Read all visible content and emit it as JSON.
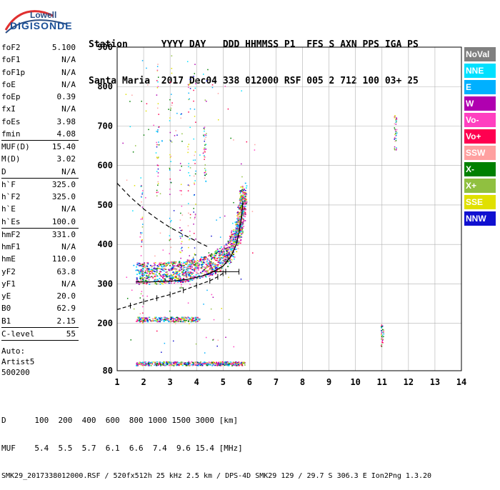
{
  "logo": {
    "brand": "Lowell",
    "product": "DIGISONDE"
  },
  "header": {
    "line1": "Station      YYYY DAY   DDD HHMMSS P1  FFS S AXN PPS IGA PS",
    "line2": "Santa Maria  2017 Dec04 338 012000 RSF 005 2 712 100 03+ 25"
  },
  "params": [
    {
      "label": "foF2",
      "value": "5.100"
    },
    {
      "label": "foF1",
      "value": "N/A"
    },
    {
      "label": "foF1p",
      "value": "N/A"
    },
    {
      "label": "foE",
      "value": "N/A"
    },
    {
      "label": "foEp",
      "value": "0.39"
    },
    {
      "label": "fxI",
      "value": "N/A"
    },
    {
      "label": "foEs",
      "value": "3.98"
    },
    {
      "label": "fmin",
      "value": "4.08"
    },
    {
      "label": "MUF(D)",
      "value": "15.40"
    },
    {
      "label": "M(D)",
      "value": "3.02"
    },
    {
      "label": "D",
      "value": "N/A"
    },
    {
      "label": "h`F",
      "value": "325.0"
    },
    {
      "label": "h`F2",
      "value": "325.0"
    },
    {
      "label": "h`E",
      "value": "N/A"
    },
    {
      "label": "h`Es",
      "value": "100.0"
    },
    {
      "label": "hmF2",
      "value": "331.0"
    },
    {
      "label": "hmF1",
      "value": "N/A"
    },
    {
      "label": "hmE",
      "value": "110.0"
    },
    {
      "label": "yF2",
      "value": "63.8"
    },
    {
      "label": "yF1",
      "value": "N/A"
    },
    {
      "label": "yE",
      "value": "20.0"
    },
    {
      "label": "B0",
      "value": "62.9"
    },
    {
      "label": "B1",
      "value": "2.15"
    },
    {
      "label": "C-level",
      "value": "55"
    }
  ],
  "auto": {
    "line1": "Auto:",
    "line2": "Artist5",
    "line3": "500200"
  },
  "legend": [
    {
      "label": "NoVal",
      "color": "#808080"
    },
    {
      "label": "NNE",
      "color": "#00e0ff"
    },
    {
      "label": "E",
      "color": "#00b0ff"
    },
    {
      "label": "W",
      "color": "#b000b0"
    },
    {
      "label": "Vo-",
      "color": "#ff40c0"
    },
    {
      "label": "Vo+",
      "color": "#ff0050"
    },
    {
      "label": "SSW",
      "color": "#ffa0a0"
    },
    {
      "label": "X-",
      "color": "#008000"
    },
    {
      "label": "X+",
      "color": "#90c040"
    },
    {
      "label": "SSE",
      "color": "#e0e000"
    },
    {
      "label": "NNW",
      "color": "#1010d0"
    }
  ],
  "chart_data": {
    "type": "scatter",
    "xlim": [
      1,
      14
    ],
    "ylim": [
      80,
      900
    ],
    "x_ticks": [
      1,
      2,
      3,
      4,
      5,
      6,
      7,
      8,
      9,
      10,
      11,
      12,
      13,
      14
    ],
    "y_ticks": [
      80,
      200,
      300,
      400,
      500,
      600,
      700,
      800,
      900
    ],
    "grid": true,
    "series": [
      {
        "name": "F2 trace",
        "points": [
          [
            1.7,
            305
          ],
          [
            2.2,
            305
          ],
          [
            2.7,
            306
          ],
          [
            3.2,
            308
          ],
          [
            3.7,
            312
          ],
          [
            4.2,
            320
          ],
          [
            4.6,
            330
          ],
          [
            5.0,
            345
          ],
          [
            5.3,
            370
          ],
          [
            5.5,
            400
          ],
          [
            5.6,
            430
          ],
          [
            5.7,
            470
          ],
          [
            5.75,
            510
          ]
        ]
      },
      {
        "name": "Es trace",
        "points": [
          [
            1.7,
            212
          ],
          [
            2.2,
            212
          ],
          [
            2.7,
            212
          ],
          [
            3.2,
            212
          ],
          [
            3.7,
            212
          ],
          [
            4.0,
            212
          ]
        ]
      },
      {
        "name": "E layer",
        "points": [
          [
            1.7,
            99
          ],
          [
            2.3,
            99
          ],
          [
            3.0,
            99
          ],
          [
            3.7,
            99
          ],
          [
            4.3,
            101
          ],
          [
            4.8,
            101
          ],
          [
            5.8,
            101
          ]
        ]
      },
      {
        "name": "Profile",
        "points": [
          [
            1.0,
            235
          ],
          [
            1.5,
            245
          ],
          [
            2.0,
            255
          ],
          [
            2.5,
            264
          ],
          [
            3.0,
            273
          ],
          [
            3.5,
            284
          ],
          [
            4.0,
            296
          ],
          [
            4.5,
            308
          ],
          [
            4.8,
            318
          ],
          [
            5.0,
            327
          ],
          [
            5.1,
            331
          ]
        ]
      },
      {
        "name": "Dashed curve",
        "points": [
          [
            1.0,
            555
          ],
          [
            1.5,
            520
          ],
          [
            2.0,
            490
          ],
          [
            2.5,
            465
          ],
          [
            3.0,
            443
          ],
          [
            3.5,
            425
          ],
          [
            4.0,
            408
          ],
          [
            4.4,
            395
          ]
        ]
      }
    ],
    "footer_d": [
      "100",
      "200",
      "400",
      "600",
      "800",
      "1000",
      "1500",
      "3000"
    ],
    "footer_d_unit": "[km]",
    "footer_muf": [
      "5.4",
      "5.5",
      "5.7",
      "6.1",
      "6.6",
      "7.4",
      "9.6",
      "15.4"
    ],
    "footer_muf_unit": "[MHz]"
  },
  "footer": {
    "d_label": "D",
    "muf_label": "MUF",
    "status": "SMK29_2017338012000.RSF / 520fx512h 25 kHz 2.5 km / DPS-4D SMK29 129 / 29.7 S 306.3 E Ion2Png 1.3.20"
  }
}
